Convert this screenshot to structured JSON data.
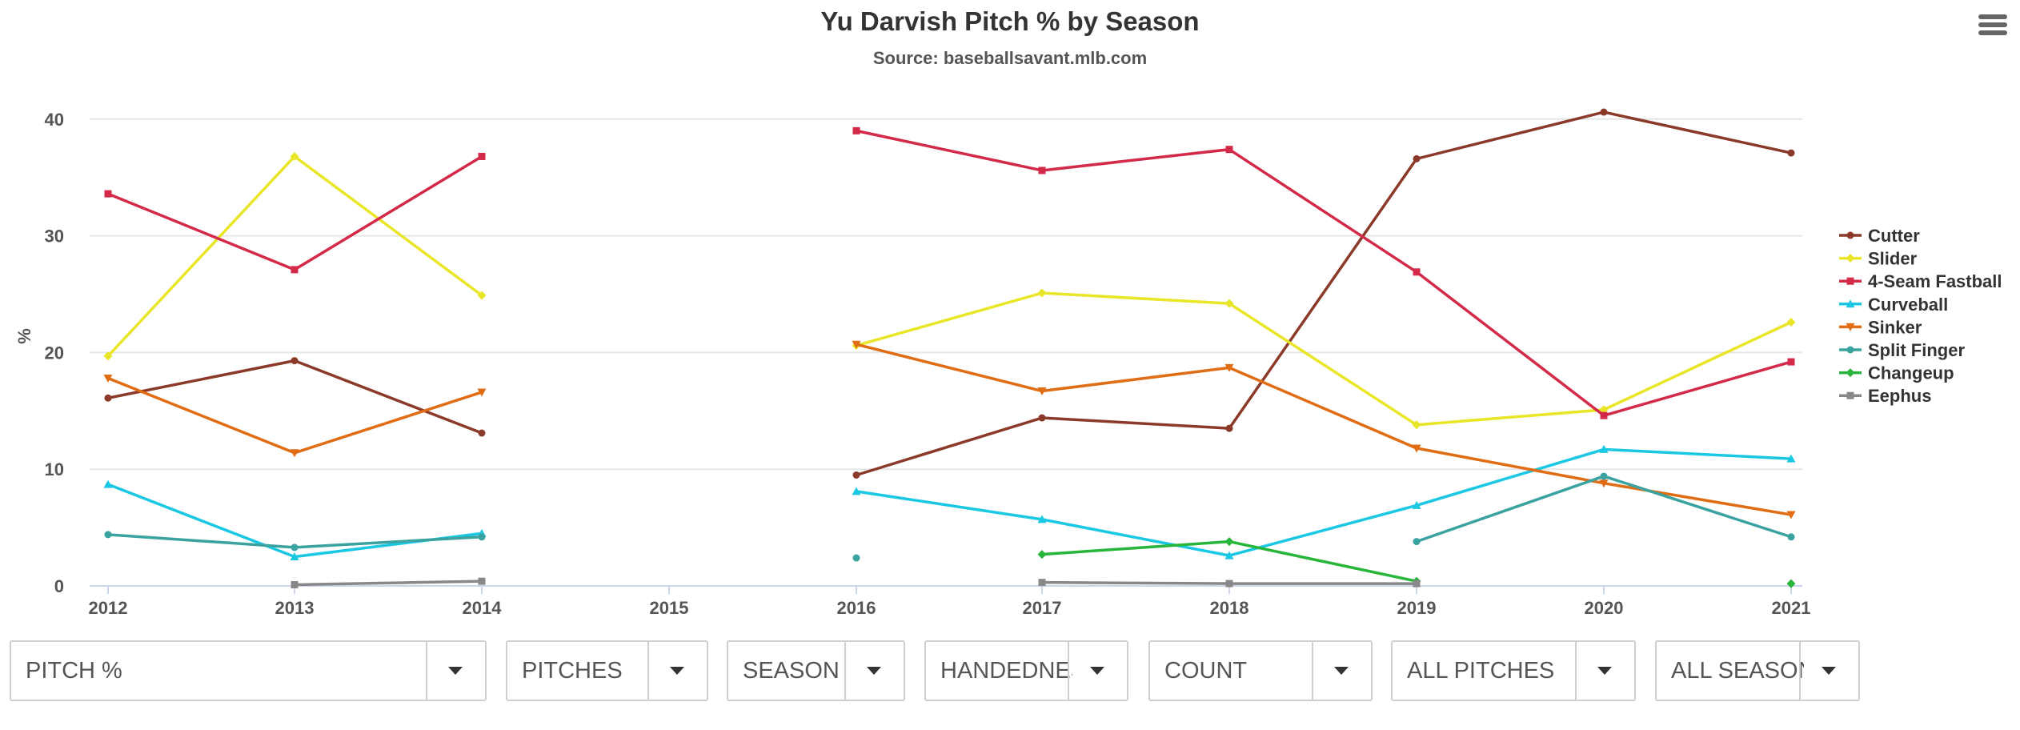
{
  "colors": {
    "Cutter": "#8B3A2A",
    "Slider": "#E9E527",
    "4-Seam Fastball": "#D42A4A",
    "Curveball": "#1BC8E3",
    "Sinker": "#E06C14",
    "Split Finger": "#3AA3A0",
    "Changeup": "#27B63A",
    "Eephus": "#888888"
  },
  "chart_data": {
    "type": "line",
    "title": "Yu Darvish Pitch % by Season",
    "subtitle": "Source: baseballsavant.mlb.com",
    "xlabel": "",
    "ylabel": "%",
    "x": [
      "2012",
      "2013",
      "2014",
      "2015",
      "2016",
      "2017",
      "2018",
      "2019",
      "2020",
      "2021"
    ],
    "yticks": [
      0,
      10,
      20,
      30,
      40
    ],
    "ylim": [
      0,
      42
    ],
    "grid": true,
    "legend_position": "right",
    "series": [
      {
        "name": "Cutter",
        "marker": "circle",
        "values": [
          16.1,
          19.3,
          13.1,
          null,
          9.5,
          14.4,
          13.5,
          36.6,
          40.6,
          37.1
        ]
      },
      {
        "name": "Slider",
        "marker": "diamond",
        "values": [
          19.7,
          36.8,
          24.9,
          null,
          20.6,
          25.1,
          24.2,
          13.8,
          15.1,
          22.6
        ]
      },
      {
        "name": "4-Seam Fastball",
        "marker": "square",
        "values": [
          33.6,
          27.1,
          36.8,
          null,
          39.0,
          35.6,
          37.4,
          26.9,
          14.6,
          19.2
        ]
      },
      {
        "name": "Curveball",
        "marker": "triangle",
        "values": [
          8.7,
          2.5,
          4.5,
          null,
          8.1,
          5.7,
          2.6,
          6.9,
          11.7,
          10.9
        ]
      },
      {
        "name": "Sinker",
        "marker": "triangle-down",
        "values": [
          17.8,
          11.4,
          16.6,
          null,
          20.7,
          16.7,
          18.7,
          11.8,
          8.8,
          6.1
        ]
      },
      {
        "name": "Split Finger",
        "marker": "circle",
        "values": [
          4.4,
          3.3,
          4.2,
          null,
          2.4,
          null,
          null,
          3.8,
          9.4,
          4.2
        ]
      },
      {
        "name": "Changeup",
        "marker": "diamond",
        "values": [
          null,
          null,
          null,
          null,
          null,
          2.7,
          3.8,
          0.4,
          null,
          0.2
        ]
      },
      {
        "name": "Eephus",
        "marker": "square",
        "values": [
          null,
          0.1,
          0.4,
          null,
          null,
          0.3,
          0.2,
          0.2,
          null,
          null
        ]
      }
    ]
  },
  "controls": [
    {
      "label": "PITCH %"
    },
    {
      "label": "PITCHES"
    },
    {
      "label": "SEASON"
    },
    {
      "label": "HANDEDNESS"
    },
    {
      "label": "COUNT"
    },
    {
      "label": "ALL PITCHES"
    },
    {
      "label": "ALL SEASONS"
    }
  ]
}
